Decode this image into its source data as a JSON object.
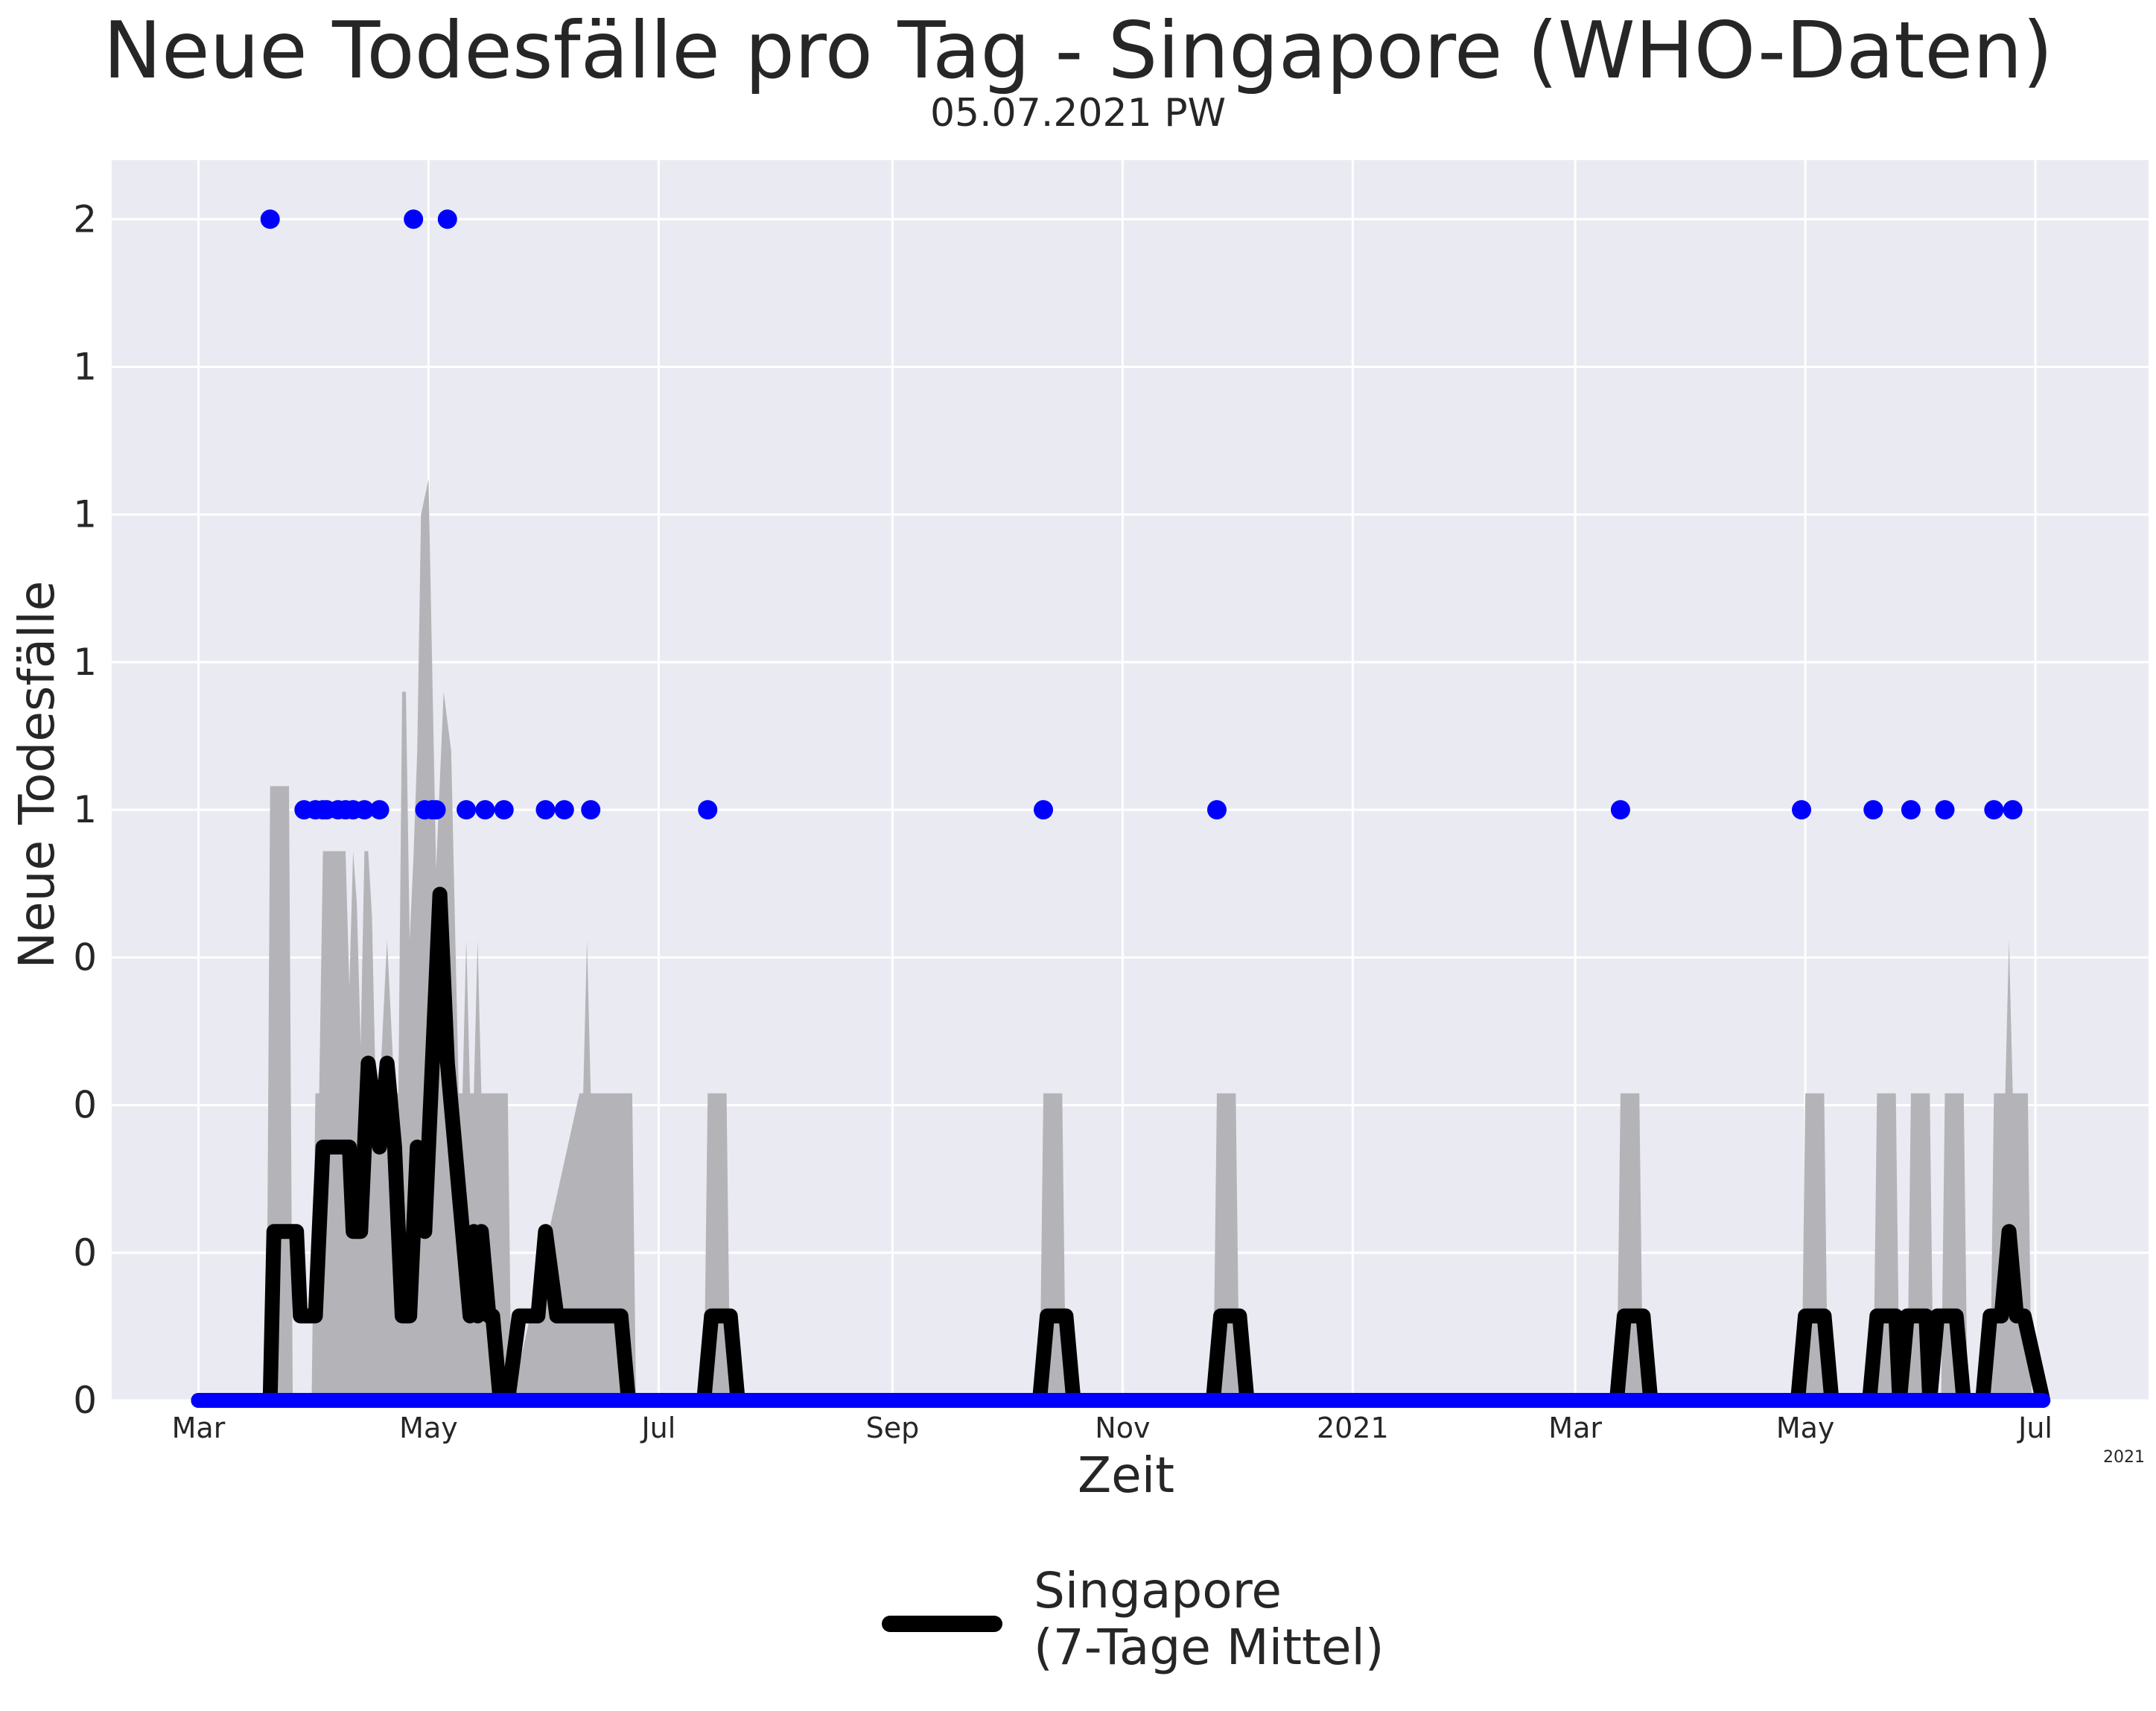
{
  "title": "Neue Todesfälle pro Tag - Singapore (WHO-Daten)",
  "subtitle": "05.07.2021 PW",
  "legend": {
    "line1": "Singapore",
    "line2": "(7-Tage Mittel)"
  },
  "colors": {
    "background_plot": "#eaeaf2",
    "grid": "#ffffff",
    "points": "#0000ff",
    "band": "#b4b4b8",
    "line": "#000000"
  },
  "chart_data": {
    "type": "line",
    "title": "Neue Todesfälle pro Tag - Singapore (WHO-Daten)",
    "subtitle": "05.07.2021 PW",
    "xlabel": "Zeit",
    "ylabel": "Neue Todesfälle",
    "x_axis_offset_text": "2021",
    "x_range": [
      "2020-02-07",
      "2021-07-31"
    ],
    "ylim": [
      0,
      2.1
    ],
    "y_ticks": [
      0,
      0.25,
      0.5,
      0.75,
      1.0,
      1.25,
      1.5,
      1.75,
      2.0
    ],
    "y_tick_labels": [
      "0",
      "0",
      "0",
      "0",
      "1",
      "1",
      "1",
      "1",
      "2"
    ],
    "x_ticks": [
      "2020-03-01",
      "2020-05-01",
      "2020-07-01",
      "2020-09-01",
      "2020-11-01",
      "2021-01-01",
      "2021-03-01",
      "2021-05-01",
      "2021-07-01"
    ],
    "x_tick_labels": [
      "Mar",
      "May",
      "Jul",
      "Sep",
      "Nov",
      "2021",
      "Mar",
      "May",
      "Jul"
    ],
    "grid": true,
    "legend_position": "bottom-center",
    "series": [
      {
        "name": "Singapore (7-Tage Mittel)",
        "kind": "line",
        "x": [
          "2020-03-01",
          "2020-03-20",
          "2020-03-21",
          "2020-03-27",
          "2020-03-28",
          "2020-04-01",
          "2020-04-03",
          "2020-04-10",
          "2020-04-11",
          "2020-04-13",
          "2020-04-14",
          "2020-04-15",
          "2020-04-18",
          "2020-04-20",
          "2020-04-22",
          "2020-04-24",
          "2020-04-26",
          "2020-04-27",
          "2020-04-28",
          "2020-04-30",
          "2020-05-02",
          "2020-05-04",
          "2020-05-06",
          "2020-05-08",
          "2020-05-10",
          "2020-05-12",
          "2020-05-13",
          "2020-05-14",
          "2020-05-15",
          "2020-05-17",
          "2020-05-18",
          "2020-05-20",
          "2020-05-22",
          "2020-05-25",
          "2020-05-30",
          "2020-06-01",
          "2020-06-04",
          "2020-06-05",
          "2020-06-07",
          "2020-06-21",
          "2020-06-23",
          "2020-07-13",
          "2020-07-15",
          "2020-07-20",
          "2020-07-22",
          "2020-10-10",
          "2020-10-12",
          "2020-10-17",
          "2020-10-19",
          "2020-11-25",
          "2020-11-27",
          "2020-12-02",
          "2020-12-04",
          "2021-03-12",
          "2021-03-14",
          "2021-03-19",
          "2021-03-21",
          "2021-04-29",
          "2021-05-01",
          "2021-05-06",
          "2021-05-08",
          "2021-05-18",
          "2021-05-20",
          "2021-05-25",
          "2021-05-26",
          "2021-05-28",
          "2021-06-02",
          "2021-06-03",
          "2021-06-05",
          "2021-06-10",
          "2021-06-12",
          "2021-06-17",
          "2021-06-19",
          "2021-06-22",
          "2021-06-24",
          "2021-06-26",
          "2021-06-28",
          "2021-07-03"
        ],
        "y": [
          0,
          0,
          0.286,
          0.286,
          0.143,
          0.143,
          0.429,
          0.429,
          0.286,
          0.286,
          0.429,
          0.571,
          0.429,
          0.571,
          0.429,
          0.143,
          0.143,
          0.286,
          0.429,
          0.286,
          0.571,
          0.857,
          0.571,
          0.429,
          0.286,
          0.143,
          0.286,
          0.143,
          0.286,
          0.143,
          0.143,
          0,
          0,
          0.143,
          0.143,
          0.286,
          0.143,
          0.143,
          0.143,
          0.143,
          0,
          0,
          0.143,
          0.143,
          0,
          0,
          0.143,
          0.143,
          0,
          0,
          0.143,
          0.143,
          0,
          0,
          0.143,
          0.143,
          0,
          0,
          0.143,
          0.143,
          0,
          0,
          0.143,
          0.143,
          0,
          0.143,
          0.143,
          0,
          0.143,
          0.143,
          0,
          0,
          0.143,
          0.143,
          0.286,
          0.143,
          0.143,
          0
        ]
      },
      {
        "name": "",
        "kind": "band",
        "x": [
          "2020-03-01",
          "2020-03-19",
          "2020-03-20",
          "2020-03-25",
          "2020-03-26",
          "2020-03-31",
          "2020-04-01",
          "2020-04-02",
          "2020-04-03",
          "2020-04-09",
          "2020-04-10",
          "2020-04-11",
          "2020-04-12",
          "2020-04-13",
          "2020-04-14",
          "2020-04-15",
          "2020-04-16",
          "2020-04-17",
          "2020-04-18",
          "2020-04-20",
          "2020-04-22",
          "2020-04-23",
          "2020-04-24",
          "2020-04-25",
          "2020-04-26",
          "2020-04-27",
          "2020-04-28",
          "2020-04-29",
          "2020-05-01",
          "2020-05-03",
          "2020-05-05",
          "2020-05-07",
          "2020-05-09",
          "2020-05-10",
          "2020-05-11",
          "2020-05-12",
          "2020-05-13",
          "2020-05-14",
          "2020-05-15",
          "2020-05-16",
          "2020-05-17",
          "2020-05-18",
          "2020-05-20",
          "2020-05-22",
          "2020-05-23",
          "2020-06-10",
          "2020-06-11",
          "2020-06-12",
          "2020-06-13",
          "2020-06-14",
          "2020-06-15",
          "2020-06-24",
          "2020-06-25",
          "2020-07-13",
          "2020-07-14",
          "2020-07-19",
          "2020-07-20",
          "2020-10-10",
          "2020-10-11",
          "2020-10-16",
          "2020-10-17",
          "2020-11-25",
          "2020-11-26",
          "2020-12-01",
          "2020-12-02",
          "2021-03-12",
          "2021-03-13",
          "2021-03-18",
          "2021-03-19",
          "2021-04-30",
          "2021-05-01",
          "2021-05-06",
          "2021-05-07",
          "2021-05-19",
          "2021-05-20",
          "2021-05-25",
          "2021-05-26",
          "2021-05-28",
          "2021-05-29",
          "2021-06-03",
          "2021-06-04",
          "2021-06-06",
          "2021-06-07",
          "2021-06-12",
          "2021-06-13",
          "2021-06-19",
          "2021-06-20",
          "2021-06-23",
          "2021-06-24",
          "2021-06-25",
          "2021-06-29",
          "2021-06-30",
          "2021-07-03"
        ],
        "y": [
          0,
          0,
          1.04,
          1.04,
          0,
          0,
          0.52,
          0.52,
          0.93,
          0.93,
          0.7,
          0.93,
          0.84,
          0.6,
          0.93,
          0.93,
          0.82,
          0.52,
          0.52,
          0.78,
          0.52,
          0.52,
          1.2,
          1.2,
          0.78,
          0.92,
          1.1,
          1.5,
          1.56,
          0.9,
          1.2,
          1.1,
          0.52,
          0.52,
          0.78,
          0.52,
          0.52,
          0.78,
          0.52,
          0.52,
          0.52,
          0.52,
          0.52,
          0.52,
          0,
          0.52,
          0.52,
          0.78,
          0.52,
          0.52,
          0.52,
          0.52,
          0,
          0,
          0.52,
          0.52,
          0,
          0,
          0.52,
          0.52,
          0,
          0,
          0.52,
          0.52,
          0,
          0,
          0.52,
          0.52,
          0,
          0,
          0.52,
          0.52,
          0,
          0,
          0.52,
          0.52,
          0,
          0,
          0.52,
          0.52,
          0,
          0,
          0.52,
          0.52,
          0,
          0,
          0.52,
          0.52,
          0.78,
          0.52,
          0.52,
          0,
          0
        ]
      },
      {
        "name": "",
        "kind": "scatter",
        "x": [
          "2020-03-20",
          "2020-03-29",
          "2020-04-01",
          "2020-04-03",
          "2020-04-04",
          "2020-04-07",
          "2020-04-09",
          "2020-04-11",
          "2020-04-14",
          "2020-04-18",
          "2020-04-27",
          "2020-04-30",
          "2020-05-02",
          "2020-05-03",
          "2020-05-06",
          "2020-05-11",
          "2020-05-16",
          "2020-05-21",
          "2020-06-01",
          "2020-06-06",
          "2020-06-13",
          "2020-07-14",
          "2020-10-11",
          "2020-11-26",
          "2021-03-13",
          "2021-04-30",
          "2021-05-19",
          "2021-05-29",
          "2021-06-07",
          "2021-06-20",
          "2021-06-25"
        ],
        "y": [
          2,
          1,
          1,
          1,
          1,
          1,
          1,
          1,
          1,
          1,
          2,
          1,
          1,
          1,
          2,
          1,
          1,
          1,
          1,
          1,
          1,
          1,
          1,
          1,
          1,
          1,
          1,
          1,
          1,
          1,
          1
        ]
      }
    ]
  }
}
